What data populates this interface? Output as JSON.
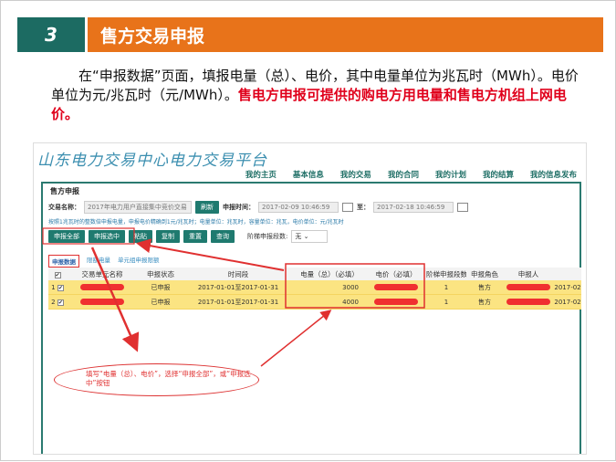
{
  "slide": {
    "number": "3",
    "title": "售方交易申报",
    "paragraph": "在“申报数据”页面，填报电量（总）、电价，其中电量单位为兆瓦时（MWh）。电价单位为元/兆瓦时（元/MWh）。",
    "paragraph_highlight": "售电方申报可提供的购电方用电量和售电方机组上网电价。"
  },
  "app": {
    "logo": "山东电力交易中心电力交易平台",
    "nav": [
      "我的主页",
      "基本信息",
      "我的交易",
      "我的合同",
      "我的计划",
      "我的结算",
      "我的信息发布"
    ],
    "panel_title": "售方申报",
    "form": {
      "trade_label": "交易名称：",
      "trade_value": "2017年电力用户直接集中竞价交易",
      "refresh": "刷新",
      "time_label": "申报时间：",
      "time_start": "2017-02-09 10:46:59",
      "to_label": "至：",
      "time_end": "2017-02-18 10:46:59"
    },
    "note": "按照1兆瓦时的整数倍申报电量，申报电价精确到1元/兆瓦时；电量单位：兆瓦时，容量单位：兆瓦，电价单位：元/兆瓦时",
    "buttons": [
      "申报全部",
      "申报选中",
      "粘贴",
      "复制",
      "重置",
      "查询"
    ],
    "tier_label": "阶梯申报段数:",
    "tier_value": "无",
    "tabs": [
      "申报数据",
      "限额电量",
      "单元组申报限额"
    ],
    "columns": [
      "",
      "交易单元名称",
      "申报状态",
      "时间段",
      "电量（总）（必填）",
      "电价（必填）",
      "阶梯申报段数",
      "申报角色",
      "申报人",
      ""
    ],
    "rows": [
      {
        "idx": "1",
        "status": "已申报",
        "period": "2017-01-01至2017-01-31",
        "energy": "3000",
        "tier": "1",
        "role": "售方",
        "date": "2017-02"
      },
      {
        "idx": "2",
        "status": "已申报",
        "period": "2017-01-01至2017-01-31",
        "energy": "4000",
        "tier": "1",
        "role": "售方",
        "date": "2017-02"
      }
    ]
  },
  "callout": "填写“电量（总）、电价”，选择“申报全部”，或“申报选中”按钮",
  "colors": {
    "teal": "#1c6b62",
    "orange": "#e8731a",
    "highlight_red": "#e0001b",
    "row_yellow": "#fbe482"
  }
}
